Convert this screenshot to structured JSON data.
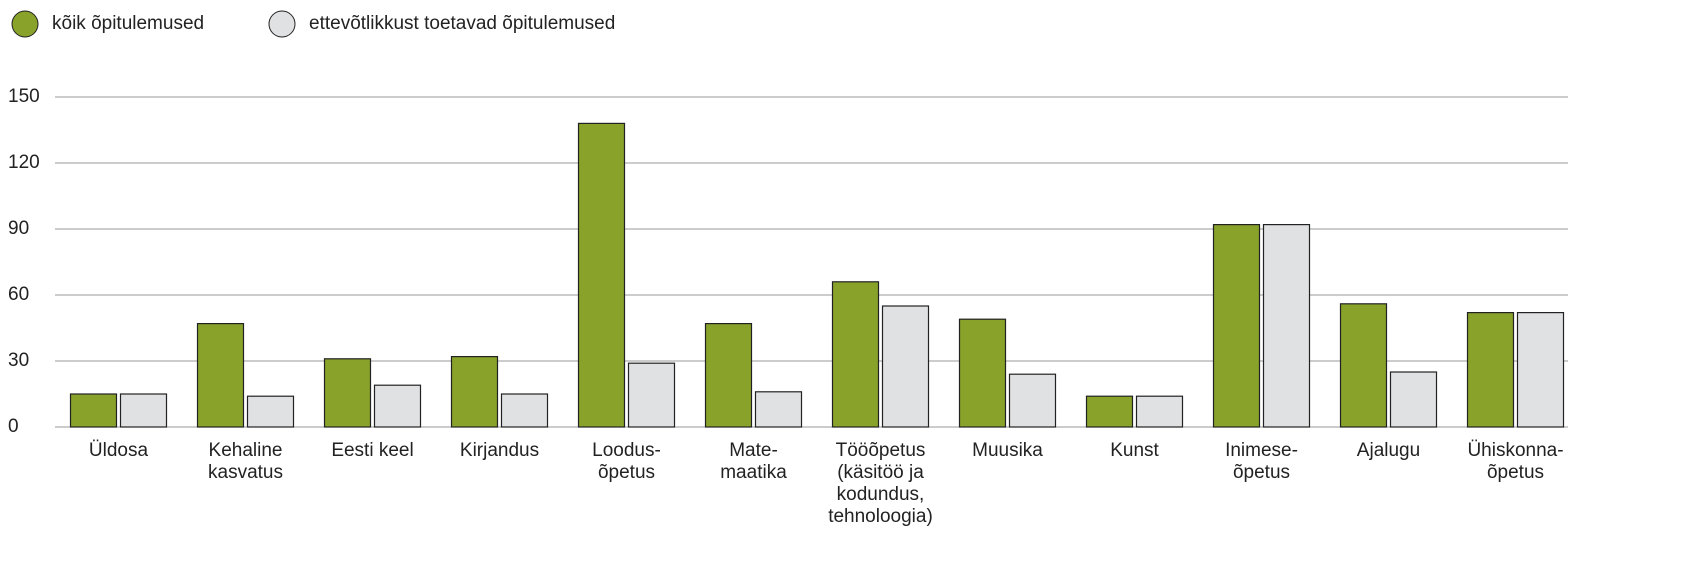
{
  "chart_data": {
    "type": "bar",
    "categories": [
      "Üldosa",
      "Kehaline\nkasvatus",
      "Eesti keel",
      "Kirjandus",
      "Loodus-\nõpetus",
      "Mate-\nmaatika",
      "Tööõpetus\n(käsitöö ja\nkodundus,\ntehnoloogia)",
      "Muusika",
      "Kunst",
      "Inimese-\nõpetus",
      "Ajalugu",
      "Ühiskonna-\nõpetus"
    ],
    "series": [
      {
        "name": "kõik õpitulemused",
        "color": "#88a22a",
        "values": [
          15,
          47,
          31,
          32,
          138,
          47,
          66,
          49,
          14,
          92,
          56,
          52
        ]
      },
      {
        "name": "ettevõtlikkust toetavad õpitulemused",
        "color": "#e0e1e3",
        "values": [
          15,
          14,
          19,
          15,
          29,
          16,
          55,
          24,
          14,
          92,
          25,
          52
        ]
      }
    ],
    "ylim": [
      0,
      150
    ],
    "yticks": [
      0,
      30,
      60,
      90,
      120,
      150
    ],
    "grid": true
  }
}
